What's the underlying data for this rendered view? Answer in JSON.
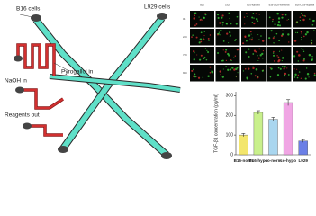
{
  "diagram": {
    "labels": [
      "B16 cells",
      "L929 cells",
      "NaOH in",
      "Pyrogallol in",
      "Reagents out"
    ]
  },
  "images": {
    "columns": [
      "B16",
      "L929",
      "B16-hypoxia",
      "B16-L929-normoxia",
      "B16-L929-hypoxia"
    ],
    "rows": [
      "0h",
      "24h",
      "72h",
      "96h"
    ]
  },
  "chart_data": {
    "type": "bar",
    "ylabel": "TGF-β1 concentration (pg/ml)",
    "categories": [
      "B16-norm",
      "B16-hypo",
      "co-norm",
      "co-hypo",
      "L929"
    ],
    "values": [
      100,
      215,
      180,
      265,
      70
    ],
    "errors": [
      8,
      9,
      10,
      15,
      7
    ],
    "colors": [
      "#f3e66c",
      "#c9f08c",
      "#a9d6ef",
      "#f0a6e4",
      "#6b7fe6"
    ],
    "ylim": [
      0,
      320
    ],
    "yticks": [
      0,
      100,
      200,
      300
    ]
  }
}
